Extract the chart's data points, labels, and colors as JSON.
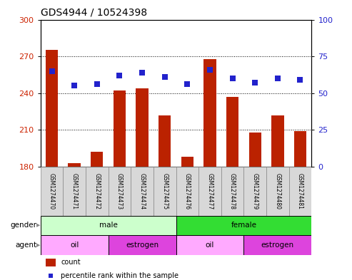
{
  "title": "GDS4944 / 10524398",
  "samples": [
    "GSM1274470",
    "GSM1274471",
    "GSM1274472",
    "GSM1274473",
    "GSM1274474",
    "GSM1274475",
    "GSM1274476",
    "GSM1274477",
    "GSM1274478",
    "GSM1274479",
    "GSM1274480",
    "GSM1274481"
  ],
  "counts": [
    275,
    183,
    192,
    242,
    244,
    222,
    188,
    268,
    237,
    208,
    222,
    209
  ],
  "percentiles": [
    65,
    55,
    56,
    62,
    64,
    61,
    56,
    66,
    60,
    57,
    60,
    59
  ],
  "ylim_left": [
    180,
    300
  ],
  "ylim_right": [
    0,
    100
  ],
  "yticks_left": [
    180,
    210,
    240,
    270,
    300
  ],
  "yticks_right": [
    0,
    25,
    50,
    75,
    100
  ],
  "bar_color": "#bb2200",
  "dot_color": "#2222cc",
  "gender_groups": [
    {
      "label": "male",
      "start": 0,
      "end": 6,
      "color": "#ccffcc"
    },
    {
      "label": "female",
      "start": 6,
      "end": 12,
      "color": "#33dd33"
    }
  ],
  "agent_groups": [
    {
      "label": "oil",
      "start": 0,
      "end": 3,
      "color": "#ffaaff"
    },
    {
      "label": "estrogen",
      "start": 3,
      "end": 6,
      "color": "#dd44dd"
    },
    {
      "label": "oil",
      "start": 6,
      "end": 9,
      "color": "#ffaaff"
    },
    {
      "label": "estrogen",
      "start": 9,
      "end": 12,
      "color": "#dd44dd"
    }
  ],
  "bar_width": 0.55,
  "dot_size": 28,
  "grid_color": "black",
  "grid_linestyle": ":",
  "grid_linewidth": 0.7,
  "left_tick_color": "#cc2200",
  "right_tick_color": "#2222cc",
  "tick_fontsize": 8,
  "sample_fontsize": 5.5,
  "label_fontsize": 7.5,
  "gender_agent_fontsize": 7.5,
  "legend_fontsize": 7,
  "title_fontsize": 10,
  "box_facecolor": "#d8d8d8",
  "box_edgecolor": "#888888"
}
